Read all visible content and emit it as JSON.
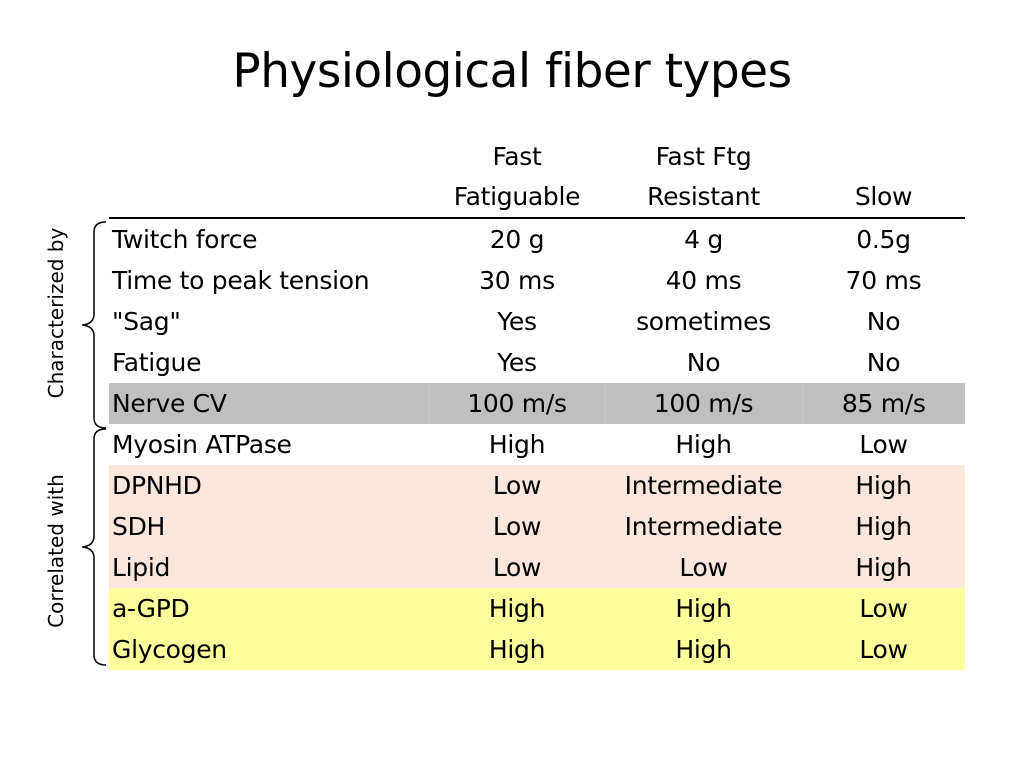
{
  "title": "Physiological fiber types",
  "table": {
    "header": {
      "corner": "",
      "columns": [
        {
          "line1": "Fast",
          "line2": "Fatiguable"
        },
        {
          "line1": "Fast Ftg",
          "line2": "Resistant"
        },
        {
          "line1": "",
          "line2": "Slow"
        }
      ]
    },
    "rows": [
      {
        "label": "Twitch force",
        "values": [
          "20 g",
          "4 g",
          "0.5g"
        ]
      },
      {
        "label": "Time to peak tension",
        "values": [
          "30 ms",
          "40 ms",
          "70 ms"
        ]
      },
      {
        "label": "\"Sag\"",
        "values": [
          "Yes",
          "sometimes",
          "No"
        ]
      },
      {
        "label": "Fatigue",
        "values": [
          "Yes",
          "No",
          "No"
        ]
      },
      {
        "label": "Nerve CV",
        "values": [
          "100 m/s",
          "100 m/s",
          "85 m/s"
        ]
      },
      {
        "label": "Myosin ATPase",
        "values": [
          "High",
          "High",
          "Low"
        ]
      },
      {
        "label": "DPNHD",
        "values": [
          "Low",
          "Intermediate",
          "High"
        ]
      },
      {
        "label": "SDH",
        "values": [
          "Low",
          "Intermediate",
          "High"
        ]
      },
      {
        "label": "Lipid",
        "values": [
          "Low",
          "Low",
          "High"
        ]
      },
      {
        "label": "a-GPD",
        "values": [
          "High",
          "High",
          "Low"
        ]
      },
      {
        "label": "Glycogen",
        "values": [
          "High",
          "High",
          "Low"
        ]
      }
    ]
  },
  "groups": {
    "characterized": "Characterized by",
    "correlated": "Correlated with"
  },
  "colors": {
    "gray_row": "#bfbfbf",
    "pink_row": "#fbe7dc",
    "yellow_row": "#fdfd9c"
  }
}
